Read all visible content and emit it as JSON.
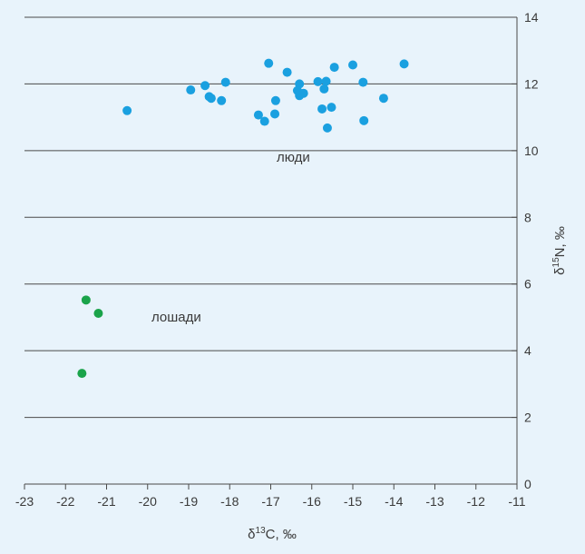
{
  "chart_data": {
    "type": "scatter",
    "title": "",
    "xlabel": "δ13C, ‰",
    "ylabel": "δ15N, ‰",
    "xlim": [
      -23,
      -11
    ],
    "ylim": [
      0,
      14
    ],
    "x_ticks": [
      -23,
      -22,
      -21,
      -20,
      -19,
      -18,
      -17,
      -16,
      -15,
      -14,
      -13,
      -12,
      -11
    ],
    "y_ticks": [
      0,
      2,
      4,
      6,
      8,
      10,
      12,
      14
    ],
    "grid": "horizontal",
    "colors": {
      "люди": "#1aa0e0",
      "лошади": "#1aa34a",
      "grid": "#4a4a4a",
      "background": "#e8f3fb"
    },
    "series": [
      {
        "name": "люди",
        "points": [
          {
            "x": -20.5,
            "y": 11.2
          },
          {
            "x": -18.95,
            "y": 11.82
          },
          {
            "x": -18.6,
            "y": 11.95
          },
          {
            "x": -18.5,
            "y": 11.62
          },
          {
            "x": -18.45,
            "y": 11.57
          },
          {
            "x": -18.2,
            "y": 11.5
          },
          {
            "x": -18.1,
            "y": 12.05
          },
          {
            "x": -17.3,
            "y": 11.07
          },
          {
            "x": -17.15,
            "y": 10.88
          },
          {
            "x": -17.05,
            "y": 12.62
          },
          {
            "x": -16.9,
            "y": 11.1
          },
          {
            "x": -16.88,
            "y": 11.5
          },
          {
            "x": -16.6,
            "y": 12.35
          },
          {
            "x": -16.35,
            "y": 11.8
          },
          {
            "x": -16.3,
            "y": 12.0
          },
          {
            "x": -16.3,
            "y": 11.65
          },
          {
            "x": -16.2,
            "y": 11.72
          },
          {
            "x": -15.85,
            "y": 12.07
          },
          {
            "x": -15.75,
            "y": 11.25
          },
          {
            "x": -15.7,
            "y": 11.85
          },
          {
            "x": -15.65,
            "y": 12.08
          },
          {
            "x": -15.62,
            "y": 10.68
          },
          {
            "x": -15.52,
            "y": 11.3
          },
          {
            "x": -15.45,
            "y": 12.5
          },
          {
            "x": -15.0,
            "y": 12.57
          },
          {
            "x": -14.75,
            "y": 12.05
          },
          {
            "x": -14.73,
            "y": 10.9
          },
          {
            "x": -14.25,
            "y": 11.57
          },
          {
            "x": -13.75,
            "y": 12.6
          }
        ]
      },
      {
        "name": "лошади",
        "points": [
          {
            "x": -21.5,
            "y": 5.52
          },
          {
            "x": -21.2,
            "y": 5.12
          },
          {
            "x": -21.6,
            "y": 3.32
          }
        ]
      }
    ],
    "annotations": [
      "люди",
      "лошади"
    ]
  }
}
